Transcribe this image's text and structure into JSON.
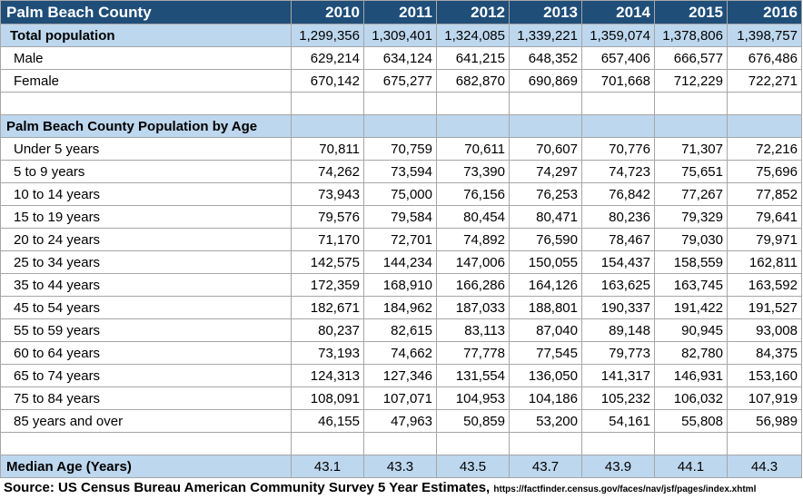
{
  "title": "Palm Beach County",
  "years": [
    "2010",
    "2011",
    "2012",
    "2013",
    "2014",
    "2015",
    "2016"
  ],
  "total_label": "Total population",
  "total": [
    "1,299,356",
    "1,309,401",
    "1,324,085",
    "1,339,221",
    "1,359,074",
    "1,378,806",
    "1,398,757"
  ],
  "sex_rows": [
    {
      "label": "Male",
      "values": [
        "629,214",
        "634,124",
        "641,215",
        "648,352",
        "657,406",
        "666,577",
        "676,486"
      ]
    },
    {
      "label": "Female",
      "values": [
        "670,142",
        "675,277",
        "682,870",
        "690,869",
        "701,668",
        "712,229",
        "722,271"
      ]
    }
  ],
  "age_section_label": "Palm Beach County Population by Age",
  "age_rows": [
    {
      "label": "Under 5 years",
      "values": [
        "70,811",
        "70,759",
        "70,611",
        "70,607",
        "70,776",
        "71,307",
        "72,216"
      ]
    },
    {
      "label": "5 to 9 years",
      "values": [
        "74,262",
        "73,594",
        "73,390",
        "74,297",
        "74,723",
        "75,651",
        "75,696"
      ]
    },
    {
      "label": "10 to 14 years",
      "values": [
        "73,943",
        "75,000",
        "76,156",
        "76,253",
        "76,842",
        "77,267",
        "77,852"
      ]
    },
    {
      "label": "15 to 19 years",
      "values": [
        "79,576",
        "79,584",
        "80,454",
        "80,471",
        "80,236",
        "79,329",
        "79,641"
      ]
    },
    {
      "label": "20 to 24 years",
      "values": [
        "71,170",
        "72,701",
        "74,892",
        "76,590",
        "78,467",
        "79,030",
        "79,971"
      ]
    },
    {
      "label": "25 to 34 years",
      "values": [
        "142,575",
        "144,234",
        "147,006",
        "150,055",
        "154,437",
        "158,559",
        "162,811"
      ]
    },
    {
      "label": "35 to 44 years",
      "values": [
        "172,359",
        "168,910",
        "166,286",
        "164,126",
        "163,625",
        "163,745",
        "163,592"
      ]
    },
    {
      "label": "45 to 54 years",
      "values": [
        "182,671",
        "184,962",
        "187,033",
        "188,801",
        "190,337",
        "191,422",
        "191,527"
      ]
    },
    {
      "label": "55 to 59 years",
      "values": [
        "80,237",
        "82,615",
        "83,113",
        "87,040",
        "89,148",
        "90,945",
        "93,008"
      ]
    },
    {
      "label": "60 to 64 years",
      "values": [
        "73,193",
        "74,662",
        "77,778",
        "77,545",
        "79,773",
        "82,780",
        "84,375"
      ]
    },
    {
      "label": "65 to 74 years",
      "values": [
        "124,313",
        "127,346",
        "131,554",
        "136,050",
        "141,317",
        "146,931",
        "153,160"
      ]
    },
    {
      "label": "75 to 84 years",
      "values": [
        "108,091",
        "107,071",
        "104,953",
        "104,186",
        "105,232",
        "106,032",
        "107,919"
      ]
    },
    {
      "label": "85 years and over",
      "values": [
        "46,155",
        "47,963",
        "50,859",
        "53,200",
        "54,161",
        "55,808",
        "56,989"
      ]
    }
  ],
  "median_label": "Median Age (Years)",
  "median": [
    "43.1",
    "43.3",
    "43.5",
    "43.7",
    "43.9",
    "44.1",
    "44.3"
  ],
  "source_text": "Source: US Census Bureau American Community Survey 5 Year Estimates,",
  "source_url": "https://factfinder.census.gov/faces/nav/jsf/pages/index.xhtml",
  "colors": {
    "header_bg": "#1f4e79",
    "section_bg": "#bdd7ee"
  }
}
